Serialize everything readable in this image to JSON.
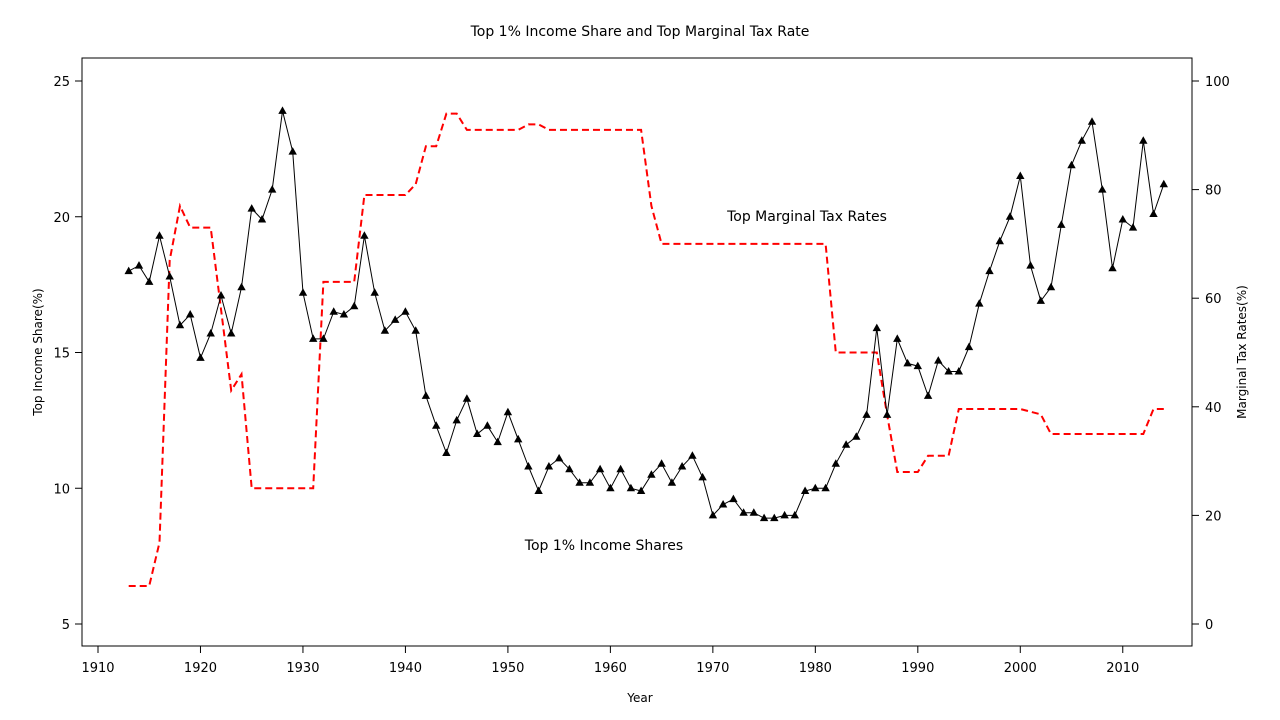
{
  "chart_data": {
    "type": "line",
    "title": "Top 1% Income Share and Top Marginal Tax Rate",
    "xlabel": "Year",
    "ylabel_left": "Top Income Share(%)",
    "ylabel_right": "Marginal Tax Rates(%)",
    "xlim": [
      1910,
      2015
    ],
    "ylim_left": [
      5,
      25
    ],
    "ylim_right": [
      0,
      100
    ],
    "xticks": [
      "1910",
      "1920",
      "1930",
      "1940",
      "1950",
      "1960",
      "1970",
      "1980",
      "1990",
      "2000",
      "2010"
    ],
    "yticks_left": [
      "5",
      "10",
      "15",
      "20",
      "25"
    ],
    "yticks_right": [
      "0",
      "20",
      "40",
      "60",
      "80",
      "100"
    ],
    "grid": false,
    "annotations": {
      "tax": "Top Marginal Tax Rates",
      "income": "Top 1% Income Shares"
    },
    "colors": {
      "income": "#000000",
      "tax": "#ff0000"
    },
    "series": [
      {
        "axis": "left",
        "style": "solid-line-triangle-markers",
        "x": [
          1913,
          1914,
          1915,
          1916,
          1917,
          1918,
          1919,
          1920,
          1921,
          1922,
          1923,
          1924,
          1925,
          1926,
          1927,
          1928,
          1929,
          1930,
          1931,
          1932,
          1933,
          1934,
          1935,
          1936,
          1937,
          1938,
          1939,
          1940,
          1941,
          1942,
          1943,
          1944,
          1945,
          1946,
          1947,
          1948,
          1949,
          1950,
          1951,
          1952,
          1953,
          1954,
          1955,
          1956,
          1957,
          1958,
          1959,
          1960,
          1961,
          1962,
          1963,
          1964,
          1965,
          1966,
          1967,
          1968,
          1969,
          1970,
          1971,
          1972,
          1973,
          1974,
          1975,
          1976,
          1977,
          1978,
          1979,
          1980,
          1981,
          1982,
          1983,
          1984,
          1985,
          1986,
          1987,
          1988,
          1989,
          1990,
          1991,
          1992,
          1993,
          1994,
          1995,
          1996,
          1997,
          1998,
          1999,
          2000,
          2001,
          2002,
          2003,
          2004,
          2005,
          2006,
          2007,
          2008,
          2009,
          2010,
          2011,
          2012,
          2013,
          2014
        ],
        "values": [
          18.0,
          18.2,
          17.6,
          19.3,
          17.8,
          16.0,
          16.4,
          14.8,
          15.7,
          17.1,
          15.7,
          17.4,
          20.3,
          19.9,
          21.0,
          23.9,
          22.4,
          17.2,
          15.5,
          15.5,
          16.5,
          16.4,
          16.7,
          19.3,
          17.2,
          15.8,
          16.2,
          16.5,
          15.8,
          13.4,
          12.3,
          11.3,
          12.5,
          13.3,
          12.0,
          12.3,
          11.7,
          12.8,
          11.8,
          10.8,
          9.9,
          10.8,
          11.1,
          10.7,
          10.2,
          10.2,
          10.7,
          10.0,
          10.7,
          10.0,
          9.9,
          10.5,
          10.9,
          10.2,
          10.8,
          11.2,
          10.4,
          9.0,
          9.4,
          9.6,
          9.1,
          9.1,
          8.9,
          8.9,
          9.0,
          9.0,
          9.9,
          10.0,
          10.0,
          10.9,
          11.6,
          11.9,
          12.7,
          15.9,
          12.7,
          15.5,
          14.6,
          14.5,
          13.4,
          14.7,
          14.3,
          14.3,
          15.2,
          16.8,
          18.0,
          19.1,
          20.0,
          21.5,
          18.2,
          16.9,
          17.4,
          19.7,
          21.9,
          22.8,
          23.5,
          21.0,
          18.1,
          19.9,
          19.6,
          22.8,
          20.1,
          21.2
        ]
      },
      {
        "axis": "right",
        "style": "dashed-line",
        "x": [
          1913,
          1914,
          1915,
          1916,
          1917,
          1918,
          1919,
          1920,
          1921,
          1922,
          1923,
          1924,
          1925,
          1926,
          1927,
          1928,
          1929,
          1930,
          1931,
          1932,
          1933,
          1934,
          1935,
          1936,
          1937,
          1938,
          1939,
          1940,
          1941,
          1942,
          1943,
          1944,
          1945,
          1946,
          1947,
          1948,
          1949,
          1950,
          1951,
          1952,
          1953,
          1954,
          1955,
          1956,
          1957,
          1958,
          1959,
          1960,
          1961,
          1962,
          1963,
          1964,
          1965,
          1966,
          1967,
          1968,
          1969,
          1970,
          1971,
          1972,
          1973,
          1974,
          1975,
          1976,
          1977,
          1978,
          1979,
          1980,
          1981,
          1982,
          1983,
          1984,
          1985,
          1986,
          1987,
          1988,
          1989,
          1990,
          1991,
          1992,
          1993,
          1994,
          1995,
          1996,
          1997,
          1998,
          1999,
          2000,
          2001,
          2002,
          2003,
          2004,
          2005,
          2006,
          2007,
          2008,
          2009,
          2010,
          2011,
          2012,
          2013,
          2014
        ],
        "values": [
          7,
          7,
          7,
          15,
          67,
          77,
          73,
          73,
          73,
          58,
          43,
          46,
          25,
          25,
          25,
          25,
          25,
          25,
          25,
          63,
          63,
          63,
          63,
          79,
          79,
          79,
          79,
          79,
          81,
          88,
          88,
          94,
          94,
          91,
          91,
          91,
          91,
          91,
          91,
          92,
          92,
          91,
          91,
          91,
          91,
          91,
          91,
          91,
          91,
          91,
          91,
          77,
          70,
          70,
          70,
          70,
          70,
          70,
          70,
          70,
          70,
          70,
          70,
          70,
          70,
          70,
          70,
          70,
          70,
          50,
          50,
          50,
          50,
          50,
          38.5,
          28,
          28,
          28,
          31,
          31,
          31,
          39.6,
          39.6,
          39.6,
          39.6,
          39.6,
          39.6,
          39.6,
          39.1,
          38.6,
          35,
          35,
          35,
          35,
          35,
          35,
          35,
          35,
          35,
          35,
          39.6,
          39.6
        ]
      }
    ]
  }
}
